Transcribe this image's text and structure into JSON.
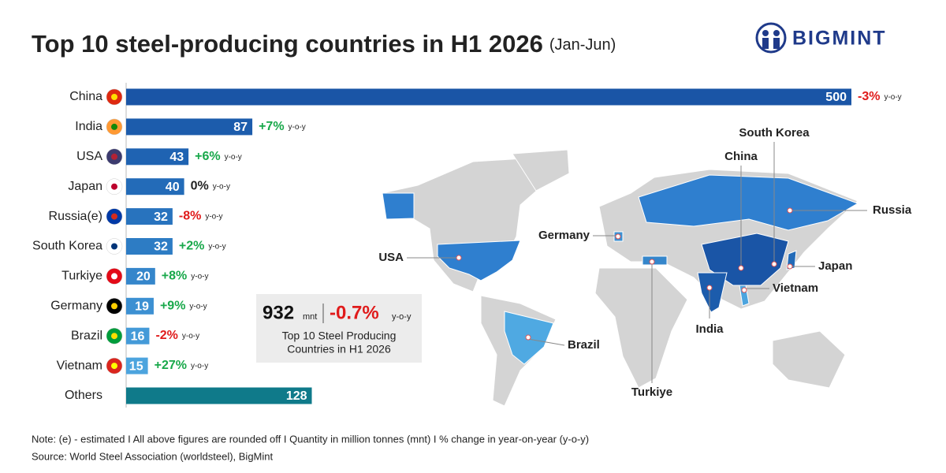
{
  "chart_data": {
    "type": "bar",
    "orientation": "horizontal",
    "title": "Top 10 steel-producing countries in H1 2026",
    "subtitle": "(Jan-Jun)",
    "logo": "BIGMINT",
    "categories": [
      "China",
      "India",
      "USA",
      "Japan",
      "Russia(e)",
      "South Korea",
      "Turkiye",
      "Germany",
      "Brazil",
      "Vietnam",
      "Others"
    ],
    "values": [
      500,
      87,
      43,
      40,
      32,
      32,
      20,
      19,
      16,
      15,
      128
    ],
    "colors": [
      "#1a55a6",
      "#1c5cac",
      "#1f63b2",
      "#236bb8",
      "#2873be",
      "#2d7cc4",
      "#3586cb",
      "#3c90d2",
      "#449ad8",
      "#4ca4de",
      "#0f7a8a"
    ],
    "changes": [
      "-3%",
      "+7%",
      "+6%",
      "0%",
      "-8%",
      "+2%",
      "+8%",
      "+9%",
      "-2%",
      "+27%",
      null
    ],
    "change_unit": "y-o-y",
    "xlim": [
      0,
      500
    ],
    "summary": {
      "total": "932",
      "unit": "mnt",
      "change": "-0.7%",
      "change_unit": "y-o-y",
      "caption_1": "Top 10 Steel Producing",
      "caption_2": "Countries in H1 2026"
    },
    "map_labels": [
      "South Korea",
      "China",
      "Russia",
      "Germany",
      "USA",
      "Japan",
      "Vietnam",
      "India",
      "Brazil",
      "Turkiye"
    ],
    "note": "Note: (e) - estimated  I  All above figures are rounded off  I  Quantity in million tonnes (mnt)  I  % change in year-on-year (y-o-y)",
    "source": "Source: World Steel Association (worldsteel), BigMint"
  }
}
